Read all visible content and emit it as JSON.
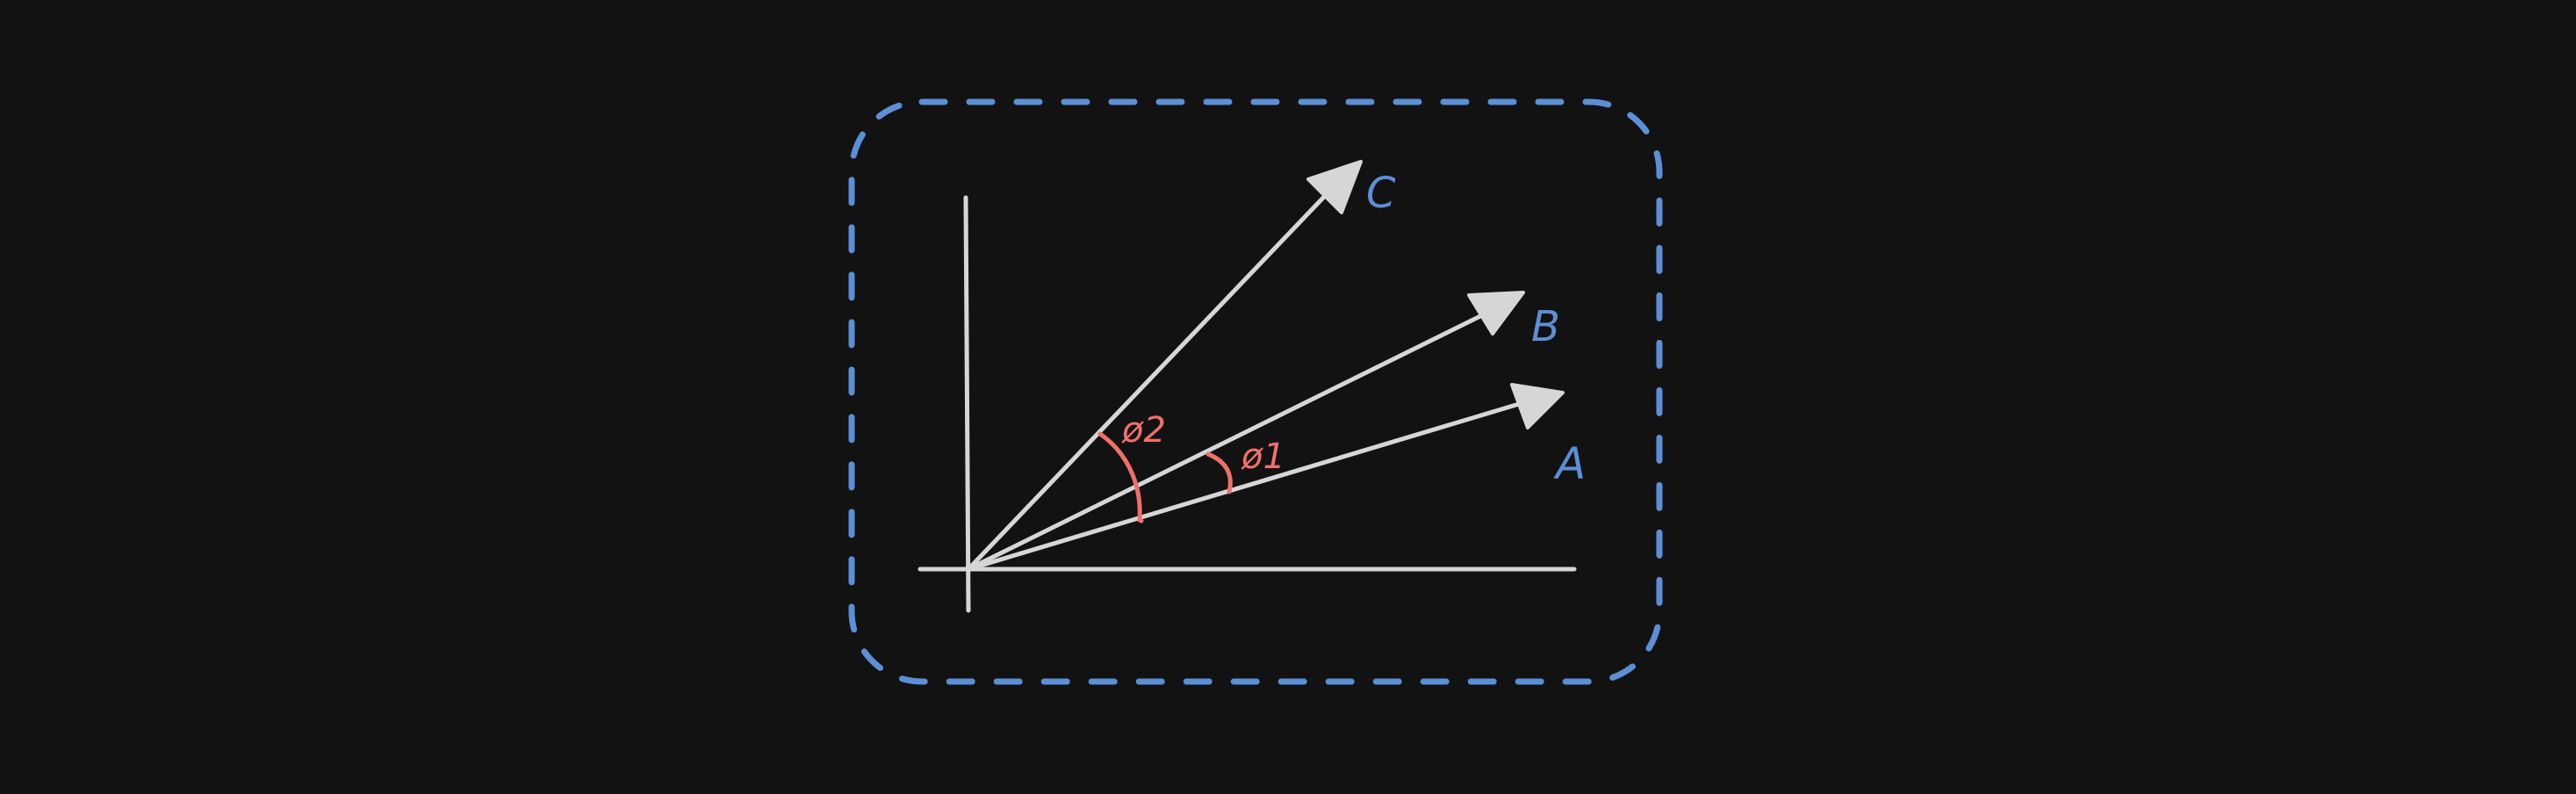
{
  "colors": {
    "background": "#121212",
    "frame": "#5b8fd6",
    "axis": "#d6d6d6",
    "vector": "#d6d6d6",
    "angle": "#f0706a",
    "vector_label": "#5b8fd6"
  },
  "labels": {
    "vector_c": "C",
    "vector_b": "B",
    "vector_a": "A",
    "angle_2": "ø2",
    "angle_1": "ø1"
  }
}
